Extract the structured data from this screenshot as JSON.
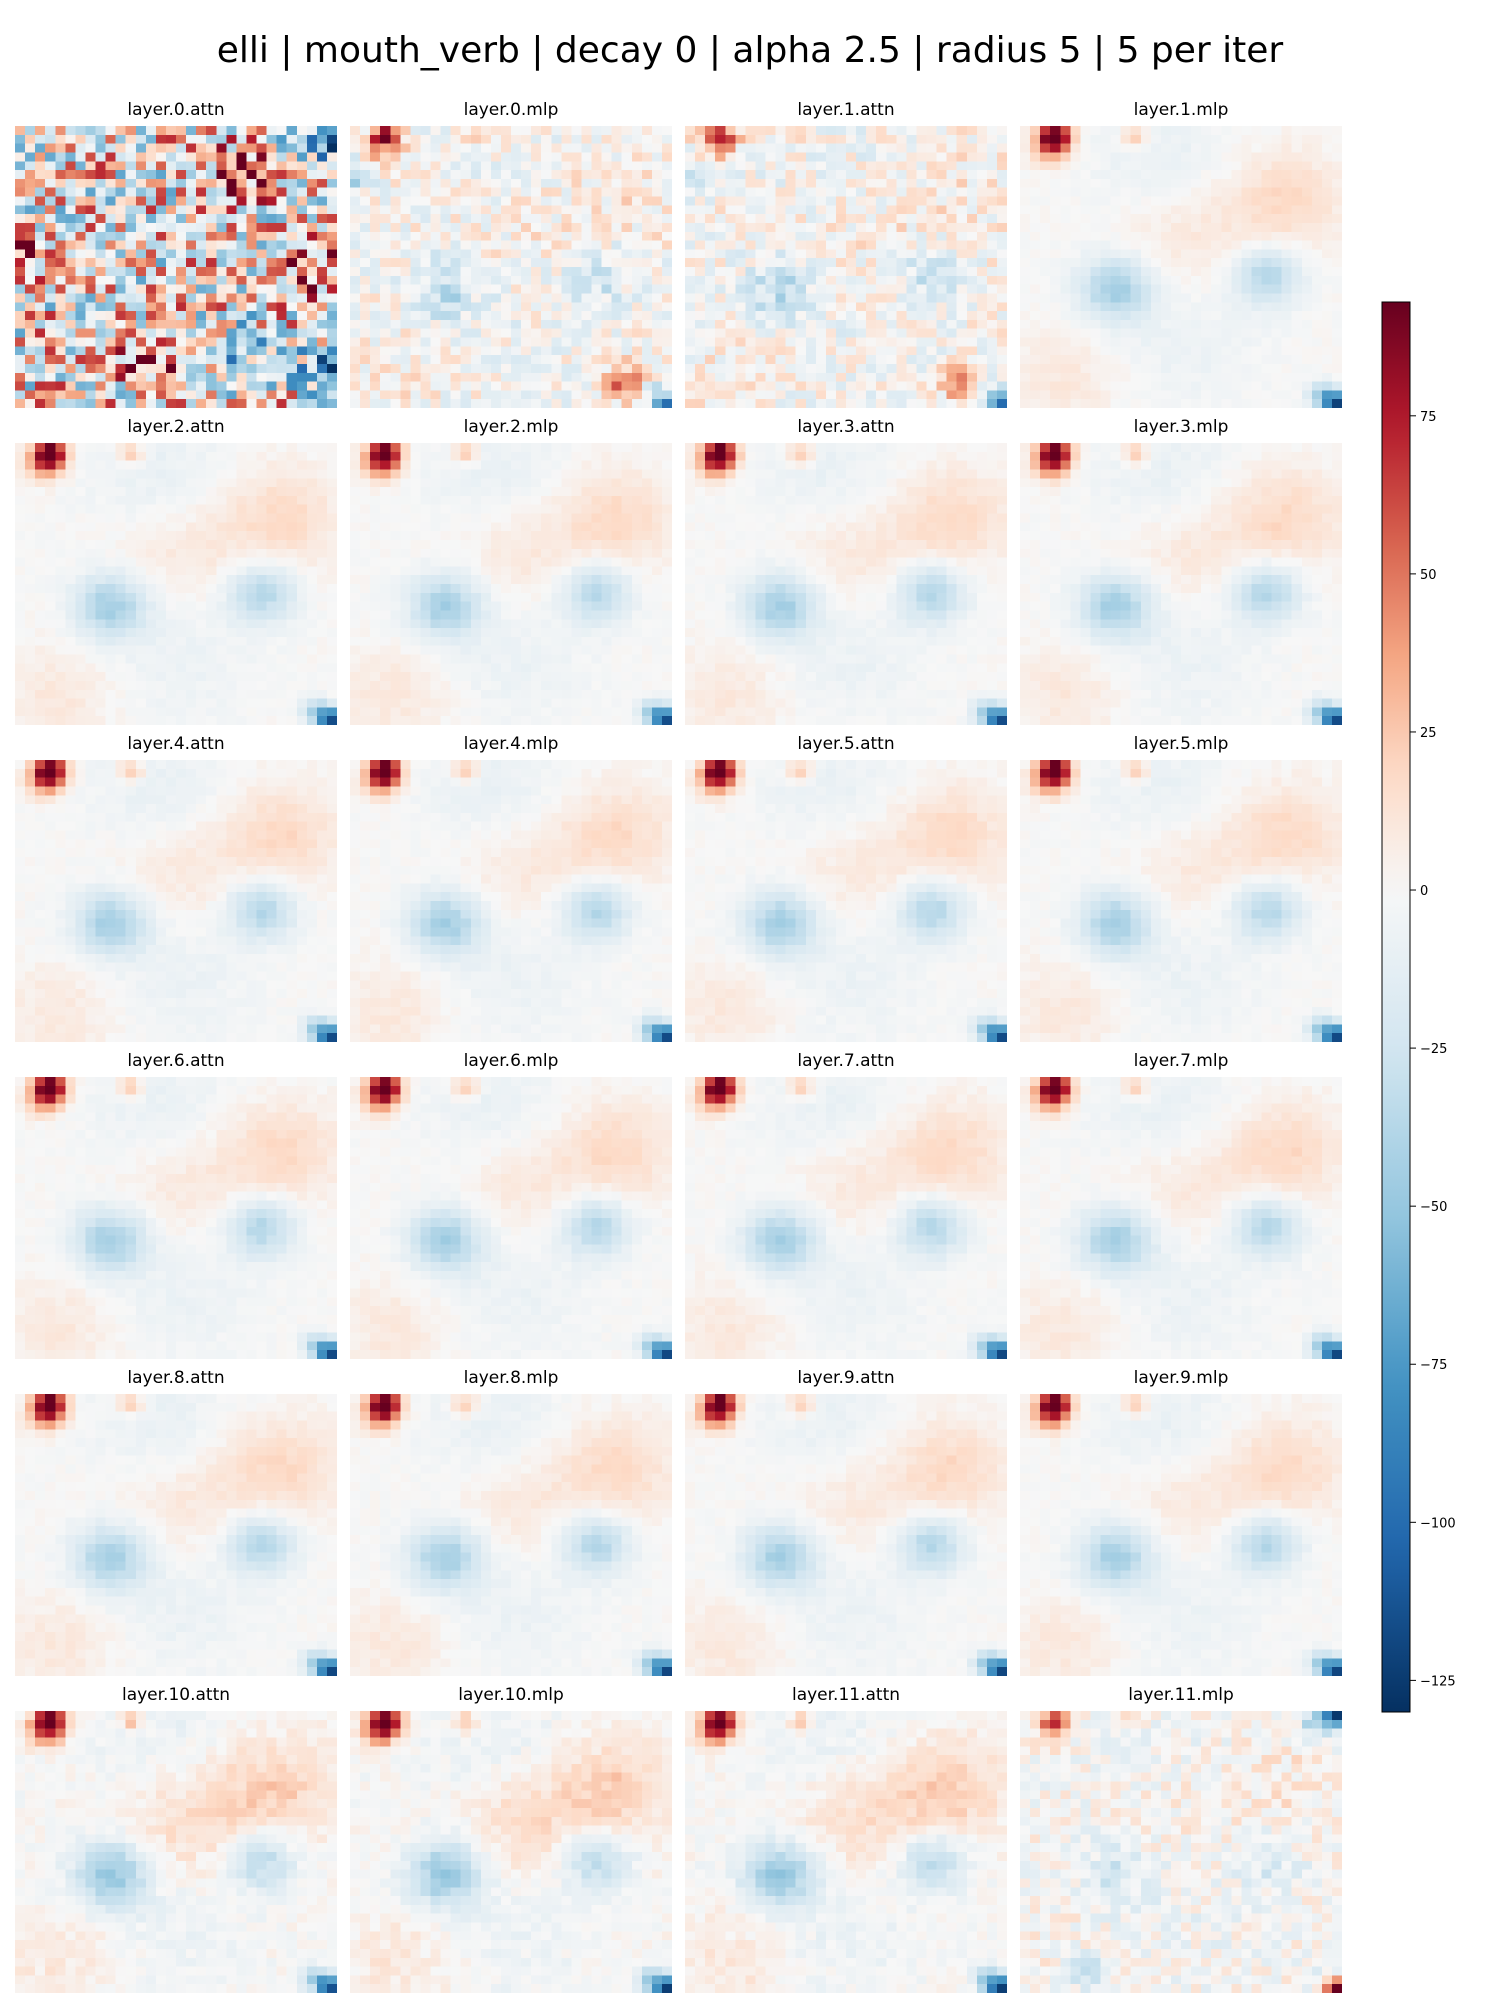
{
  "title": "elli | mouth_verb | decay 0 | alpha 2.5 | radius 5 | 5 per iter",
  "chart_data": {
    "type": "heatmap",
    "colormap": "RdBu_r",
    "grid_size": [
      32,
      32
    ],
    "panels": [
      {
        "label": "layer.0.attn"
      },
      {
        "label": "layer.0.mlp"
      },
      {
        "label": "layer.1.attn"
      },
      {
        "label": "layer.1.mlp"
      },
      {
        "label": "layer.2.attn"
      },
      {
        "label": "layer.2.mlp"
      },
      {
        "label": "layer.3.attn"
      },
      {
        "label": "layer.3.mlp"
      },
      {
        "label": "layer.4.attn"
      },
      {
        "label": "layer.4.mlp"
      },
      {
        "label": "layer.5.attn"
      },
      {
        "label": "layer.5.mlp"
      },
      {
        "label": "layer.6.attn"
      },
      {
        "label": "layer.6.mlp"
      },
      {
        "label": "layer.7.attn"
      },
      {
        "label": "layer.7.mlp"
      },
      {
        "label": "layer.8.attn"
      },
      {
        "label": "layer.8.mlp"
      },
      {
        "label": "layer.9.attn"
      },
      {
        "label": "layer.9.mlp"
      },
      {
        "label": "layer.10.attn"
      },
      {
        "label": "layer.10.mlp"
      },
      {
        "label": "layer.11.attn"
      },
      {
        "label": "layer.11.mlp"
      }
    ],
    "colorbar": {
      "range": [
        -130,
        93
      ],
      "ticks": [
        -125,
        -100,
        -75,
        -50,
        -25,
        0,
        25,
        50,
        75
      ],
      "tick_labels": [
        "−125",
        "−100",
        "−75",
        "−50",
        "−25",
        "0",
        "25",
        "50",
        "75"
      ]
    },
    "features": {
      "red_blobs": [
        {
          "row": 1,
          "col": 3,
          "value": 93
        },
        {
          "row": 1,
          "col": 11,
          "value": 30
        }
      ],
      "blue_blobs": [
        {
          "row": 18,
          "col": 9,
          "value": -45
        },
        {
          "row": 16,
          "col": 24,
          "value": -40
        },
        {
          "row": 30,
          "col": 31,
          "value": -100
        }
      ],
      "warm_bands": [
        {
          "row": 8,
          "col": 26,
          "value": 18
        },
        {
          "row": 11,
          "col": 16,
          "value": 12
        }
      ]
    }
  }
}
